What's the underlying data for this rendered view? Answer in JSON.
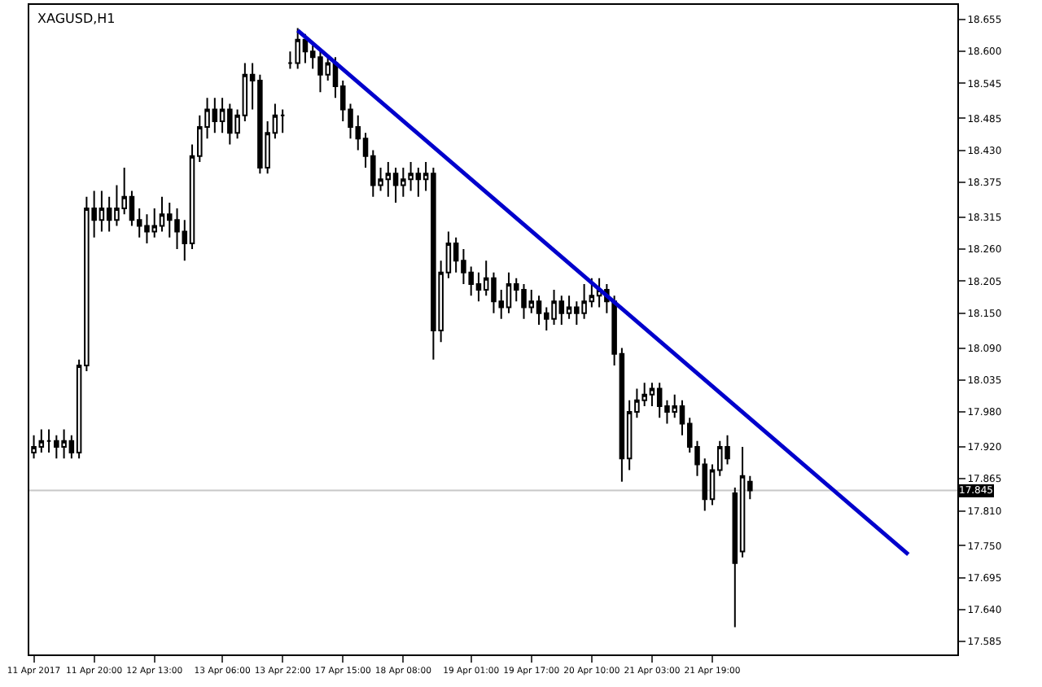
{
  "chart_data": {
    "type": "candlestick",
    "title": "XAGUSD,H1",
    "categories": [
      "11 Apr 2017",
      null,
      null,
      null,
      null,
      null,
      null,
      null,
      "11 Apr 20:00",
      null,
      null,
      null,
      null,
      null,
      null,
      null,
      "12 Apr 13:00",
      null,
      null,
      null,
      null,
      null,
      null,
      null,
      null,
      "13 Apr 06:00",
      null,
      null,
      null,
      null,
      null,
      null,
      null,
      "13 Apr 22:00",
      null,
      null,
      null,
      null,
      null,
      null,
      null,
      "17 Apr 15:00",
      null,
      null,
      null,
      null,
      null,
      null,
      null,
      "18 Apr 08:00",
      null,
      null,
      null,
      null,
      null,
      null,
      null,
      null,
      "19 Apr 01:00",
      null,
      null,
      null,
      null,
      null,
      null,
      null,
      "19 Apr 17:00",
      null,
      null,
      null,
      null,
      null,
      null,
      null,
      "20 Apr 10:00",
      null,
      null,
      null,
      null,
      null,
      null,
      null,
      "21 Apr 03:00",
      null,
      null,
      null,
      null,
      null,
      null,
      null,
      "21 Apr 19:00",
      null,
      null,
      null,
      null,
      null,
      null,
      null,
      null,
      null,
      null,
      null,
      null,
      null,
      null,
      null,
      null,
      null,
      null,
      null,
      null,
      null,
      null,
      null,
      null,
      null,
      null,
      null,
      null,
      null,
      null,
      null,
      null
    ],
    "ylim": [
      17.563,
      18.68
    ],
    "yticks": [
      18.655,
      {
        "value": 18.6,
        "label": "18.600"
      },
      18.545,
      18.485,
      {
        "value": 18.43,
        "label": "18.430"
      },
      18.375,
      18.315,
      {
        "value": 18.26,
        "label": "18.260"
      },
      18.205,
      {
        "value": 18.15,
        "label": "18.150"
      },
      {
        "value": 18.09,
        "label": "18.090"
      },
      18.035,
      {
        "value": 17.98,
        "label": "17.980"
      },
      {
        "value": 17.92,
        "label": "17.920"
      },
      17.865,
      {
        "value": 17.81,
        "label": "17.810"
      },
      {
        "value": 17.75,
        "label": "17.750"
      },
      17.695,
      {
        "value": 17.64,
        "label": "17.640"
      },
      17.585
    ],
    "ref_lines": [
      {
        "axis": "y",
        "value": 17.845,
        "label": "17.845",
        "color": "#c8c8c8"
      }
    ],
    "series": [
      {
        "color": "#000000",
        "ohlc": [
          [
            17.91,
            17.94,
            17.9,
            17.92
          ],
          [
            17.92,
            17.95,
            17.91,
            17.93
          ],
          [
            17.93,
            17.95,
            17.91,
            17.93
          ],
          [
            17.93,
            17.94,
            17.9,
            17.92
          ],
          [
            17.92,
            17.95,
            17.9,
            17.93
          ],
          [
            17.93,
            17.94,
            17.9,
            17.91
          ],
          [
            17.91,
            18.07,
            17.9,
            18.06
          ],
          [
            18.06,
            18.35,
            18.05,
            18.33
          ],
          [
            18.33,
            18.36,
            18.28,
            18.31
          ],
          [
            18.31,
            18.36,
            18.29,
            18.33
          ],
          [
            18.33,
            18.35,
            18.29,
            18.31
          ],
          [
            18.31,
            18.37,
            18.3,
            18.33
          ],
          [
            18.33,
            18.4,
            18.32,
            18.35
          ],
          [
            18.35,
            18.36,
            18.3,
            18.31
          ],
          [
            18.31,
            18.33,
            18.28,
            18.3
          ],
          [
            18.3,
            18.32,
            18.27,
            18.29
          ],
          [
            18.29,
            18.33,
            18.28,
            18.3
          ],
          [
            18.3,
            18.35,
            18.29,
            18.32
          ],
          [
            18.32,
            18.34,
            18.28,
            18.31
          ],
          [
            18.31,
            18.33,
            18.26,
            18.29
          ],
          [
            18.29,
            18.31,
            18.24,
            18.27
          ],
          [
            18.27,
            18.44,
            18.26,
            18.42
          ],
          [
            18.42,
            18.49,
            18.41,
            18.47
          ],
          [
            18.47,
            18.52,
            18.45,
            18.5
          ],
          [
            18.5,
            18.52,
            18.46,
            18.48
          ],
          [
            18.48,
            18.52,
            18.46,
            18.5
          ],
          [
            18.5,
            18.51,
            18.44,
            18.46
          ],
          [
            18.46,
            18.5,
            18.45,
            18.49
          ],
          [
            18.49,
            18.58,
            18.48,
            18.56
          ],
          [
            18.56,
            18.58,
            18.5,
            18.55
          ],
          [
            18.55,
            18.56,
            18.39,
            18.4
          ],
          [
            18.4,
            18.48,
            18.39,
            18.46
          ],
          [
            18.46,
            18.51,
            18.45,
            18.49
          ],
          [
            18.49,
            18.5,
            18.46,
            18.49
          ],
          [
            18.58,
            18.6,
            18.57,
            18.58
          ],
          [
            18.58,
            18.64,
            18.57,
            18.62
          ],
          [
            18.62,
            18.63,
            18.58,
            18.6
          ],
          [
            18.6,
            18.61,
            18.57,
            18.59
          ],
          [
            18.59,
            18.6,
            18.53,
            18.56
          ],
          [
            18.56,
            18.59,
            18.55,
            18.58
          ],
          [
            18.58,
            18.59,
            18.52,
            18.54
          ],
          [
            18.54,
            18.55,
            18.48,
            18.5
          ],
          [
            18.5,
            18.51,
            18.45,
            18.47
          ],
          [
            18.47,
            18.49,
            18.43,
            18.45
          ],
          [
            18.45,
            18.46,
            18.4,
            18.42
          ],
          [
            18.42,
            18.43,
            18.35,
            18.37
          ],
          [
            18.37,
            18.4,
            18.36,
            18.38
          ],
          [
            18.38,
            18.41,
            18.35,
            18.39
          ],
          [
            18.39,
            18.4,
            18.34,
            18.37
          ],
          [
            18.37,
            18.4,
            18.35,
            18.38
          ],
          [
            18.38,
            18.41,
            18.36,
            18.39
          ],
          [
            18.39,
            18.4,
            18.35,
            18.38
          ],
          [
            18.38,
            18.41,
            18.36,
            18.39
          ],
          [
            18.39,
            18.4,
            18.07,
            18.12
          ],
          [
            18.12,
            18.24,
            18.1,
            18.22
          ],
          [
            18.22,
            18.29,
            18.21,
            18.27
          ],
          [
            18.27,
            18.28,
            18.22,
            18.24
          ],
          [
            18.24,
            18.26,
            18.2,
            18.22
          ],
          [
            18.22,
            18.23,
            18.18,
            18.2
          ],
          [
            18.2,
            18.22,
            18.17,
            18.19
          ],
          [
            18.19,
            18.24,
            18.18,
            18.21
          ],
          [
            18.21,
            18.22,
            18.15,
            18.17
          ],
          [
            18.17,
            18.19,
            18.14,
            18.16
          ],
          [
            18.16,
            18.22,
            18.15,
            18.2
          ],
          [
            18.2,
            18.21,
            18.17,
            18.19
          ],
          [
            18.19,
            18.2,
            18.14,
            18.16
          ],
          [
            18.16,
            18.19,
            18.15,
            18.17
          ],
          [
            18.17,
            18.18,
            18.13,
            18.15
          ],
          [
            18.15,
            18.16,
            18.12,
            18.14
          ],
          [
            18.14,
            18.19,
            18.13,
            18.17
          ],
          [
            18.17,
            18.18,
            18.13,
            18.15
          ],
          [
            18.15,
            18.18,
            18.14,
            18.16
          ],
          [
            18.16,
            18.17,
            18.13,
            18.15
          ],
          [
            18.15,
            18.2,
            18.14,
            18.17
          ],
          [
            18.17,
            18.21,
            18.16,
            18.18
          ],
          [
            18.18,
            18.21,
            18.16,
            18.19
          ],
          [
            18.19,
            18.2,
            18.15,
            18.17
          ],
          [
            18.17,
            18.18,
            18.06,
            18.08
          ],
          [
            18.08,
            18.09,
            17.86,
            17.9
          ],
          [
            17.9,
            18.0,
            17.88,
            17.98
          ],
          [
            17.98,
            18.02,
            17.97,
            18.0
          ],
          [
            18.0,
            18.03,
            17.99,
            18.01
          ],
          [
            18.01,
            18.03,
            17.99,
            18.02
          ],
          [
            18.02,
            18.03,
            17.97,
            17.99
          ],
          [
            17.99,
            18.0,
            17.96,
            17.98
          ],
          [
            17.98,
            18.01,
            17.97,
            17.99
          ],
          [
            17.99,
            18.0,
            17.94,
            17.96
          ],
          [
            17.96,
            17.97,
            17.91,
            17.92
          ],
          [
            17.92,
            17.93,
            17.87,
            17.89
          ],
          [
            17.89,
            17.9,
            17.81,
            17.83
          ],
          [
            17.83,
            17.89,
            17.82,
            17.88
          ],
          [
            17.88,
            17.93,
            17.87,
            17.92
          ],
          [
            17.92,
            17.94,
            17.89,
            17.9
          ],
          [
            17.84,
            17.85,
            17.61,
            17.72
          ],
          [
            17.74,
            17.92,
            17.73,
            17.87
          ],
          [
            17.86,
            17.87,
            17.83,
            17.845
          ],
          null,
          null,
          null,
          null,
          null,
          null,
          null,
          null,
          null,
          null,
          null,
          null,
          null,
          null,
          null,
          null,
          null,
          null,
          null,
          null,
          null,
          null,
          null,
          null,
          null,
          null,
          null
        ]
      },
      {
        "type": "line",
        "color": "#0000cc",
        "values": [
          null,
          null,
          null,
          null,
          null,
          null,
          null,
          null,
          null,
          null,
          null,
          null,
          null,
          null,
          null,
          null,
          null,
          null,
          null,
          null,
          null,
          null,
          null,
          null,
          null,
          null,
          null,
          null,
          null,
          null,
          null,
          null,
          null,
          null,
          null,
          18.636,
          null,
          null,
          null,
          null,
          null,
          null,
          null,
          null,
          null,
          null,
          null,
          null,
          null,
          null,
          null,
          null,
          null,
          null,
          null,
          null,
          null,
          null,
          null,
          null,
          null,
          null,
          null,
          null,
          null,
          null,
          null,
          null,
          null,
          null,
          null,
          null,
          null,
          null,
          null,
          null,
          null,
          null,
          null,
          null,
          null,
          null,
          null,
          null,
          null,
          null,
          null,
          null,
          null,
          null,
          null,
          null,
          null,
          null,
          null,
          null,
          null,
          null,
          null,
          null,
          null,
          null,
          null,
          null,
          null,
          null,
          null,
          null,
          null,
          null,
          null,
          null,
          null,
          null,
          null,
          null,
          17.735,
          null,
          null,
          null,
          null,
          null,
          null
        ]
      }
    ]
  }
}
